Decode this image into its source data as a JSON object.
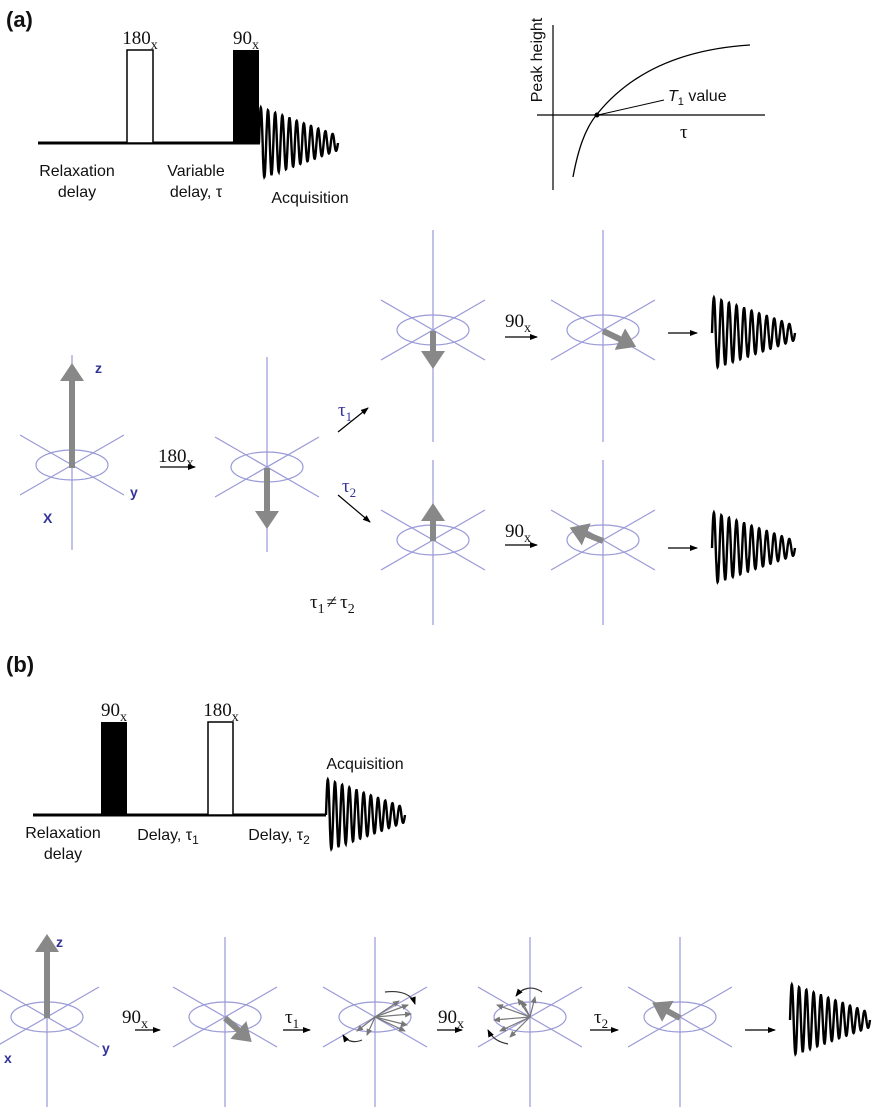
{
  "panel_a": {
    "label": "(a)",
    "sequence": {
      "pulse_1": {
        "text": "180",
        "sub": "x"
      },
      "pulse_2": {
        "text": "90",
        "sub": "x"
      },
      "relaxation_delay": [
        "Relaxation",
        "delay"
      ],
      "variable_delay": [
        "Variable",
        "delay, τ"
      ],
      "acquisition": "Acquisition"
    },
    "plot": {
      "y_axis_label": "Peak height",
      "annotation": {
        "text": "T",
        "sub": "1",
        "rest": " value"
      },
      "x_axis_label": "τ"
    },
    "vectors": {
      "axes": {
        "z": "z",
        "y": "y",
        "x": "X"
      },
      "pulse_1": {
        "text": "180",
        "sub": "x"
      },
      "delay_1": {
        "text": "τ",
        "sub": "1"
      },
      "delay_2": {
        "text": "τ",
        "sub": "2"
      },
      "pulse_2_top": {
        "text": "90",
        "sub": "x"
      },
      "pulse_2_bottom": {
        "text": "90",
        "sub": "x"
      },
      "condition": {
        "a": "τ",
        "a_sub": "1",
        "op": "≠",
        "b": "τ",
        "b_sub": "2"
      }
    }
  },
  "panel_b": {
    "label": "(b)",
    "sequence": {
      "pulse_1": {
        "text": "90",
        "sub": "x"
      },
      "pulse_2": {
        "text": "180",
        "sub": "x"
      },
      "acquisition": "Acquisition",
      "relaxation_delay": [
        "Relaxation",
        "delay"
      ],
      "delay_1": {
        "text": "Delay, τ",
        "sub": "1"
      },
      "delay_2": {
        "text": "Delay, τ",
        "sub": "2"
      }
    },
    "vectors": {
      "axes": {
        "z": "z",
        "x": "x",
        "y": "y"
      },
      "pulse_1": {
        "text": "90",
        "sub": "x"
      },
      "delay_1": {
        "text": "τ",
        "sub": "1"
      },
      "pulse_2": {
        "text": "90",
        "sub": "x"
      },
      "delay_2": {
        "text": "τ",
        "sub": "2"
      }
    }
  }
}
